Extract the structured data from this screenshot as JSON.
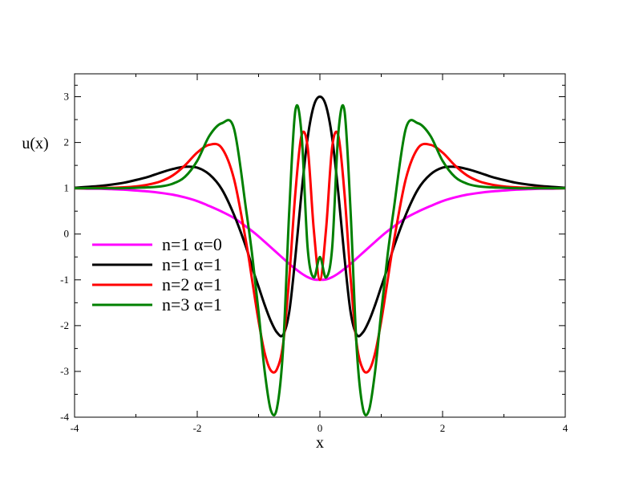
{
  "chart_data": {
    "type": "line",
    "xlabel": "x",
    "ylabel": "u(x)",
    "xlim": [
      -4,
      4
    ],
    "ylim": [
      -4,
      3.5
    ],
    "x_ticks": [
      -4,
      -2,
      0,
      2,
      4
    ],
    "y_ticks": [
      -4,
      -3,
      -2,
      -1,
      0,
      1,
      2,
      3
    ],
    "x_tick_labels": [
      "-4",
      "-2",
      "0",
      "2",
      "4"
    ],
    "y_tick_labels": [
      "-4",
      "-3",
      "-2",
      "-1",
      "0",
      "1",
      "2",
      "3"
    ],
    "grid": false,
    "legend_position": "left",
    "x": [
      -4.0,
      -3.8,
      -3.6,
      -3.4,
      -3.2,
      -3.0,
      -2.8,
      -2.6,
      -2.4,
      -2.2,
      -2.0,
      -1.8,
      -1.6,
      -1.4,
      -1.2,
      -1.1,
      -1.0,
      -0.9,
      -0.8,
      -0.7,
      -0.6,
      -0.5,
      -0.4,
      -0.3,
      -0.2,
      -0.1,
      0.0,
      0.1,
      0.2,
      0.3,
      0.4,
      0.5,
      0.6,
      0.7,
      0.8,
      0.9,
      1.0,
      1.1,
      1.2,
      1.4,
      1.6,
      1.8,
      2.0,
      2.2,
      2.4,
      2.6,
      2.8,
      3.0,
      3.2,
      3.4,
      3.6,
      3.8,
      4.0
    ],
    "series": [
      {
        "name": "n=1 α=0",
        "color": "#ff00ff",
        "values": [
          1.0,
          0.99,
          0.99,
          0.98,
          0.97,
          0.95,
          0.93,
          0.9,
          0.86,
          0.8,
          0.72,
          0.61,
          0.49,
          0.35,
          0.16,
          0.06,
          -0.05,
          -0.17,
          -0.29,
          -0.41,
          -0.53,
          -0.65,
          -0.76,
          -0.86,
          -0.94,
          -0.99,
          -1.0,
          -0.99,
          -0.94,
          -0.86,
          -0.76,
          -0.65,
          -0.53,
          -0.41,
          -0.29,
          -0.17,
          -0.05,
          0.06,
          0.16,
          0.35,
          0.49,
          0.61,
          0.72,
          0.8,
          0.86,
          0.9,
          0.93,
          0.95,
          0.97,
          0.98,
          0.99,
          0.99,
          1.0
        ]
      },
      {
        "name": "n=1 α=1",
        "color": "#000000",
        "values": [
          1.01,
          1.03,
          1.05,
          1.08,
          1.12,
          1.18,
          1.25,
          1.34,
          1.42,
          1.47,
          1.45,
          1.3,
          0.98,
          0.42,
          -0.3,
          -0.75,
          -1.15,
          -1.55,
          -1.9,
          -2.15,
          -2.2,
          -1.7,
          -0.5,
          0.9,
          2.1,
          2.8,
          3.0,
          2.8,
          2.1,
          0.9,
          -0.5,
          -1.7,
          -2.2,
          -2.15,
          -1.9,
          -1.55,
          -1.15,
          -0.75,
          -0.3,
          0.42,
          0.98,
          1.3,
          1.45,
          1.47,
          1.42,
          1.34,
          1.25,
          1.18,
          1.12,
          1.08,
          1.05,
          1.03,
          1.01
        ]
      },
      {
        "name": "n=2 α=1",
        "color": "#ff0000",
        "values": [
          1.0,
          1.0,
          1.01,
          1.01,
          1.02,
          1.04,
          1.08,
          1.15,
          1.28,
          1.5,
          1.78,
          1.95,
          1.88,
          1.2,
          -0.2,
          -1.05,
          -1.9,
          -2.6,
          -2.98,
          -2.95,
          -2.4,
          -0.95,
          0.9,
          2.15,
          1.9,
          0.1,
          -1.0,
          0.1,
          1.9,
          2.15,
          0.9,
          -0.95,
          -2.4,
          -2.95,
          -2.98,
          -2.6,
          -1.9,
          -1.05,
          -0.2,
          1.2,
          1.88,
          1.95,
          1.78,
          1.5,
          1.28,
          1.15,
          1.08,
          1.04,
          1.02,
          1.01,
          1.01,
          1.0,
          1.0
        ]
      },
      {
        "name": "n=3 α=1",
        "color": "#008000",
        "values": [
          1.0,
          1.0,
          1.0,
          1.0,
          1.0,
          1.01,
          1.02,
          1.04,
          1.1,
          1.25,
          1.6,
          2.15,
          2.42,
          2.3,
          0.5,
          -0.5,
          -1.7,
          -3.0,
          -3.85,
          -3.8,
          -2.5,
          0.5,
          2.7,
          2.2,
          -0.3,
          -0.95,
          -0.5,
          -0.95,
          -0.3,
          2.2,
          2.7,
          0.5,
          -2.5,
          -3.8,
          -3.85,
          -3.0,
          -1.7,
          -0.5,
          0.5,
          2.3,
          2.42,
          2.15,
          1.6,
          1.25,
          1.1,
          1.04,
          1.02,
          1.01,
          1.0,
          1.0,
          1.0,
          1.0,
          1.0
        ]
      }
    ]
  }
}
